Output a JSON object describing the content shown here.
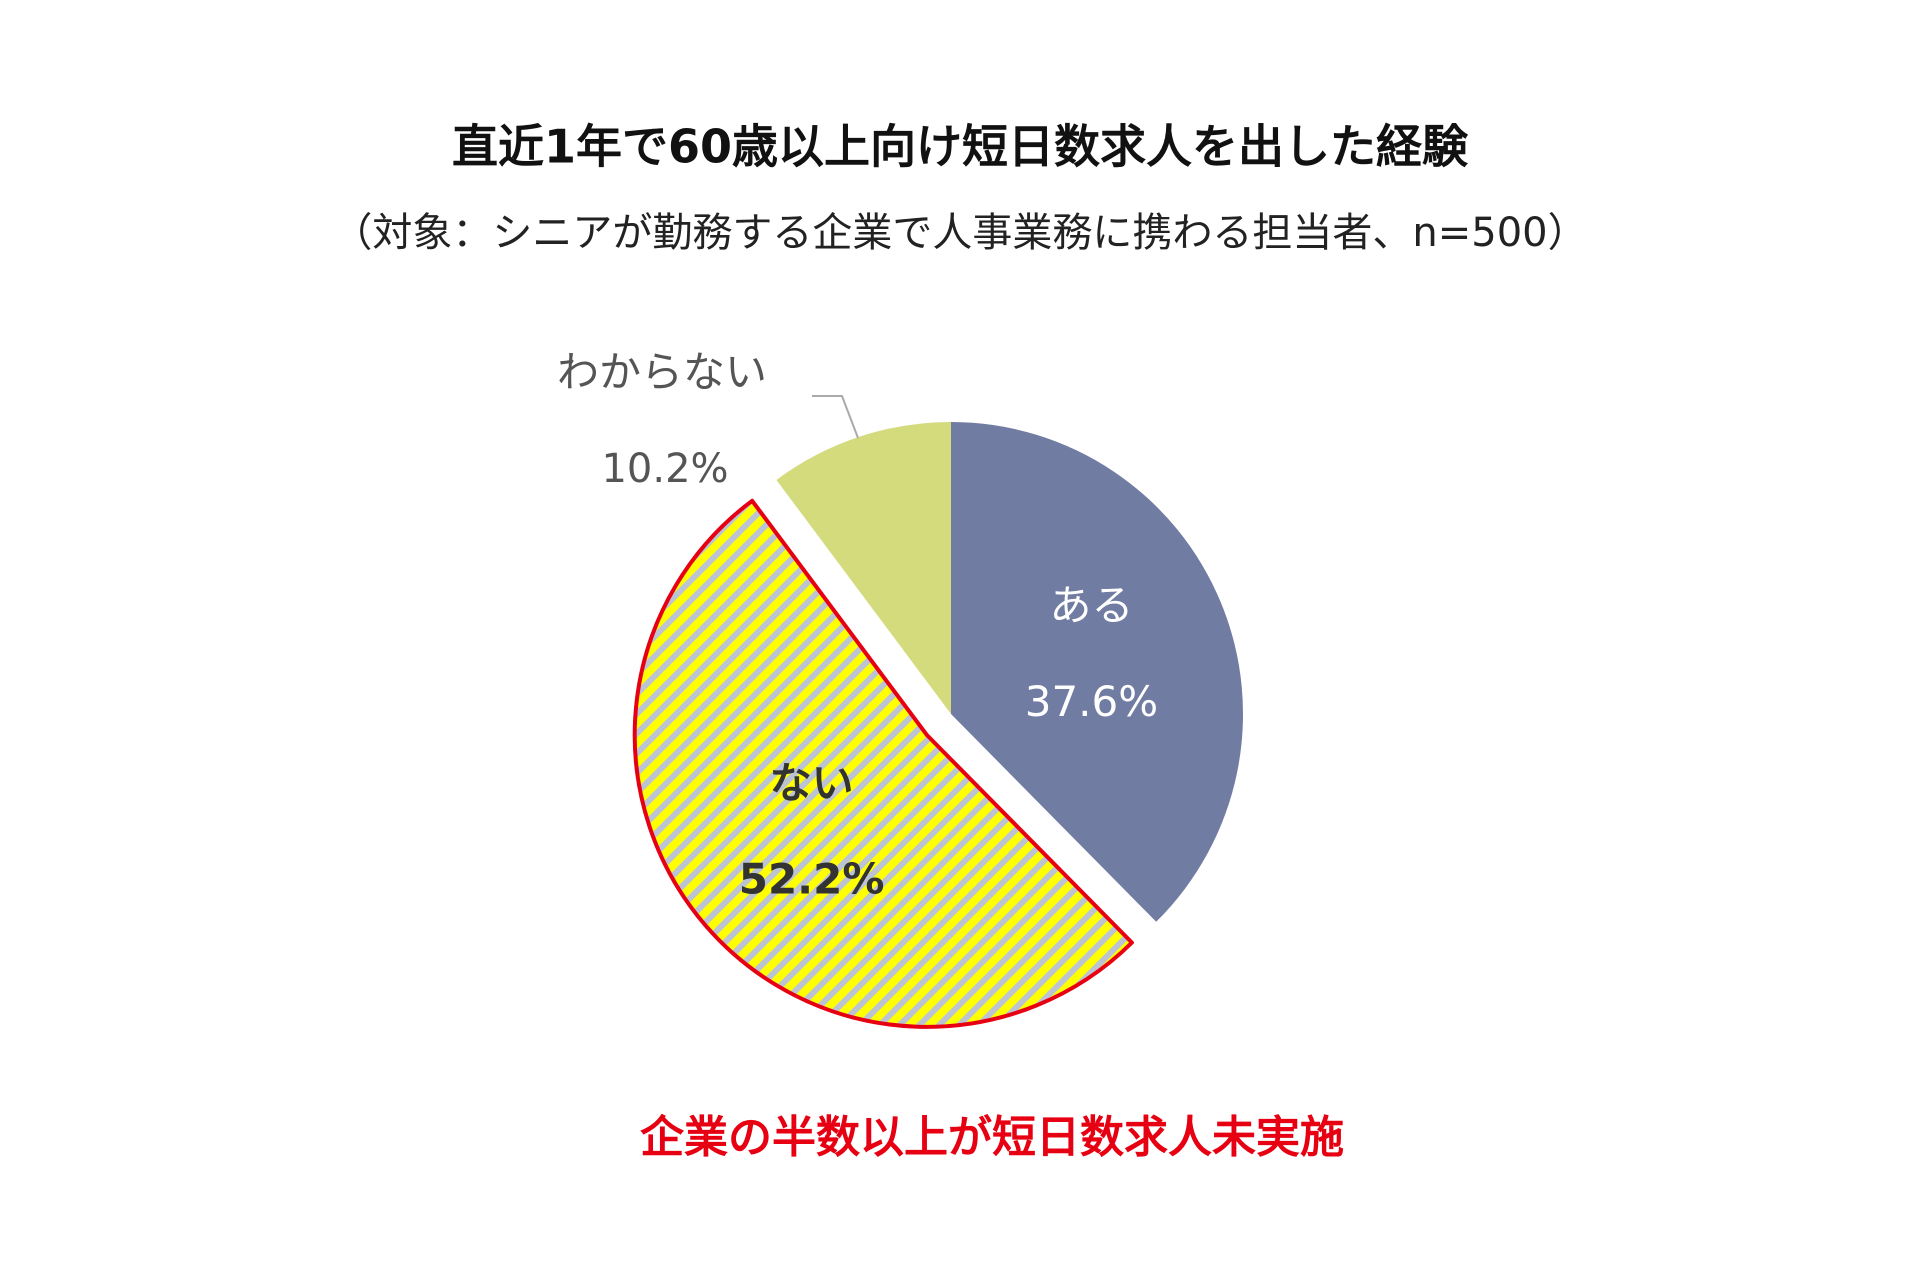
{
  "chart_data": {
    "type": "pie",
    "title": "直近1年で60歳以上向け短日数求人を出した経験",
    "subtitle": "（対象：シニアが勤務する企業で人事業務に携わる担当者、n=500）",
    "categories": [
      "ある",
      "ない",
      "わからない"
    ],
    "values": [
      37.6,
      52.2,
      10.2
    ],
    "value_labels": [
      "37.6%",
      "52.2%",
      "10.2%"
    ],
    "colors": [
      "#717ca3",
      "#ffff00",
      "#d3db7d"
    ],
    "annotation": "企業の半数以上が短日数求人未実施"
  }
}
